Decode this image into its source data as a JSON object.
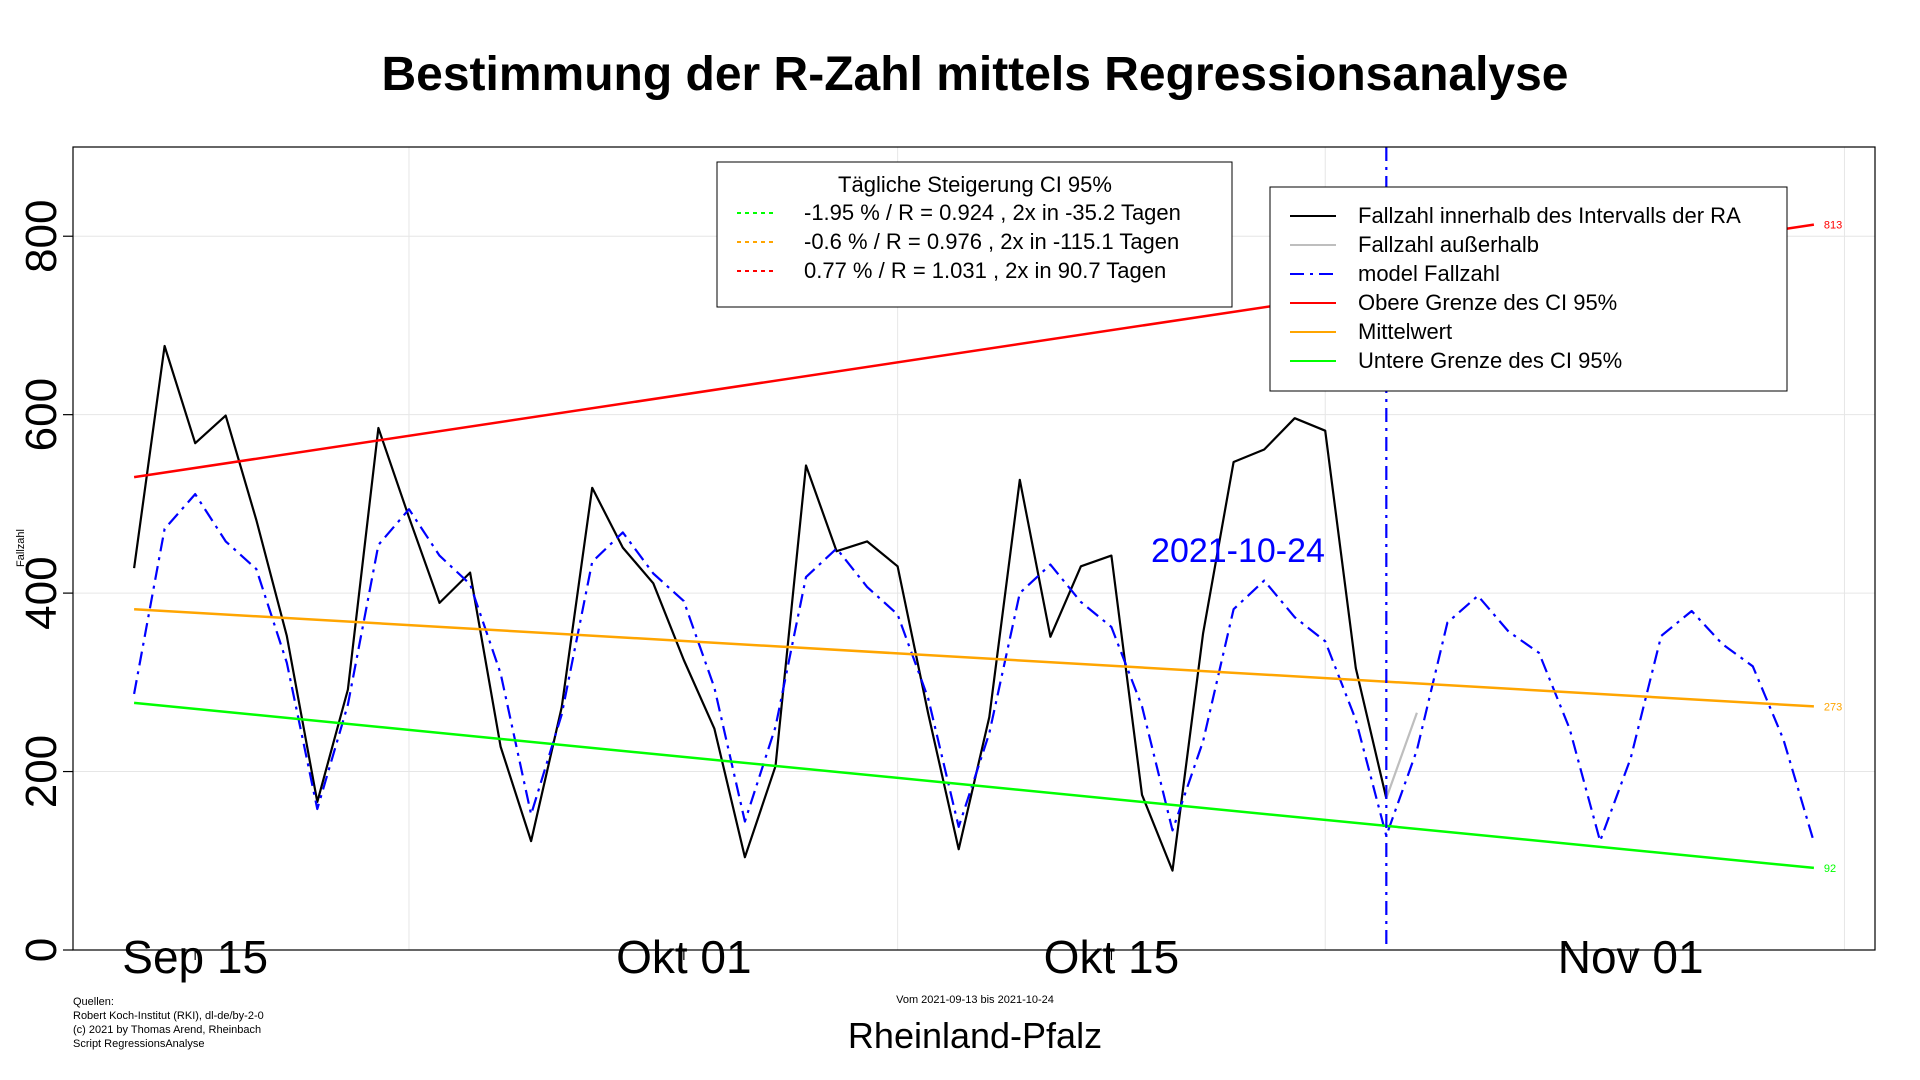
{
  "chart_data": {
    "type": "line",
    "title": "Bestimmung der R-Zahl mittels Regressionsanalyse",
    "ylabel": "Fallzahl",
    "region": "Rheinland-Pfalz",
    "period_label": "Vom 2021-09-13 bis 2021-10-24",
    "cutoff_label": "2021-10-24",
    "cutoff_date": "2021-10-24",
    "sources": [
      "Quellen:",
      "Robert Koch-Institut (RKI), dl-de/by-2-0",
      "(c) 2021 by Thomas Arend, Rheinbach",
      "Script RegressionsAnalyse"
    ],
    "ylim": [
      0,
      900
    ],
    "xlim": [
      "2021-09-11",
      "2021-11-09"
    ],
    "grid": true,
    "y_ticks": [
      {
        "label": "0",
        "value": 0
      },
      {
        "label": "200",
        "value": 200
      },
      {
        "label": "400",
        "value": 400
      },
      {
        "label": "600",
        "value": 600
      },
      {
        "label": "800",
        "value": 800
      }
    ],
    "x_ticks": [
      {
        "label": "Sep 15",
        "date": "2021-09-15"
      },
      {
        "label": "Okt 01",
        "date": "2021-10-01"
      },
      {
        "label": "Okt 15",
        "date": "2021-10-15"
      },
      {
        "label": "Nov 01",
        "date": "2021-11-01"
      }
    ],
    "x_minor_grid_dates": [
      "2021-09-22",
      "2021-10-08",
      "2021-10-22",
      "2021-11-08"
    ],
    "ci_box": {
      "title": "Tägliche Steigerung CI  95%",
      "rows": [
        {
          "text": "-1.95 % / R = 0.924 , 2x in -35.2 Tagen",
          "color": "#00ff00"
        },
        {
          "text": "-0.6 % / R = 0.976 , 2x in -115.1 Tagen",
          "color": "#ffa500"
        },
        {
          "text": "0.77 % / R = 1.031 , 2x in 90.7 Tagen",
          "color": "#ff0000"
        }
      ]
    },
    "legend": {
      "placement": "top-right",
      "items": [
        {
          "text": "Fallzahl innerhalb des Intervalls der RA",
          "color": "#000000",
          "dash": "solid"
        },
        {
          "text": "Fallzahl außerhalb",
          "color": "#bebebe",
          "dash": "solid"
        },
        {
          "text": "model Fallzahl",
          "color": "#0000ff",
          "dash": "dashdot"
        },
        {
          "text": "Obere Grenze des CI 95%",
          "color": "#ff0000",
          "dash": "solid"
        },
        {
          "text": "Mittelwert",
          "color": "#ffa500",
          "dash": "solid"
        },
        {
          "text": "Untere Grenze des CI 95%",
          "color": "#00ff00",
          "dash": "solid"
        }
      ]
    },
    "series": [
      {
        "name": "Fallzahl innerhalb des Intervalls der RA",
        "color": "#000000",
        "x": [
          "2021-09-13",
          "2021-09-14",
          "2021-09-15",
          "2021-09-16",
          "2021-09-17",
          "2021-09-18",
          "2021-09-19",
          "2021-09-20",
          "2021-09-21",
          "2021-09-22",
          "2021-09-23",
          "2021-09-24",
          "2021-09-25",
          "2021-09-26",
          "2021-09-27",
          "2021-09-28",
          "2021-09-29",
          "2021-09-30",
          "2021-10-01",
          "2021-10-02",
          "2021-10-03",
          "2021-10-04",
          "2021-10-05",
          "2021-10-06",
          "2021-10-07",
          "2021-10-08",
          "2021-10-09",
          "2021-10-10",
          "2021-10-11",
          "2021-10-12",
          "2021-10-13",
          "2021-10-14",
          "2021-10-15",
          "2021-10-16",
          "2021-10-17",
          "2021-10-18",
          "2021-10-19",
          "2021-10-20",
          "2021-10-21",
          "2021-10-22",
          "2021-10-23",
          "2021-10-24"
        ],
        "values": [
          428,
          677,
          568,
          599,
          482,
          352,
          166,
          292,
          585,
          485,
          389,
          423,
          228,
          122,
          272,
          518,
          451,
          411,
          325,
          248,
          104,
          206,
          543,
          447,
          458,
          430,
          265,
          113,
          261,
          527,
          351,
          430,
          442,
          174,
          89,
          355,
          547,
          561,
          596,
          582,
          316,
          170
        ]
      },
      {
        "name": "Fallzahl außerhalb",
        "color": "#bebebe",
        "x": [
          "2021-10-24",
          "2021-10-25"
        ],
        "values": [
          170,
          266
        ]
      },
      {
        "name": "model Fallzahl",
        "color": "#0000ff",
        "x": [
          "2021-09-13",
          "2021-09-14",
          "2021-09-15",
          "2021-09-16",
          "2021-09-17",
          "2021-09-18",
          "2021-09-19",
          "2021-09-20",
          "2021-09-21",
          "2021-09-22",
          "2021-09-23",
          "2021-09-24",
          "2021-09-25",
          "2021-09-26",
          "2021-09-27",
          "2021-09-28",
          "2021-09-29",
          "2021-09-30",
          "2021-10-01",
          "2021-10-02",
          "2021-10-03",
          "2021-10-04",
          "2021-10-05",
          "2021-10-06",
          "2021-10-07",
          "2021-10-08",
          "2021-10-09",
          "2021-10-10",
          "2021-10-11",
          "2021-10-12",
          "2021-10-13",
          "2021-10-14",
          "2021-10-15",
          "2021-10-16",
          "2021-10-17",
          "2021-10-18",
          "2021-10-19",
          "2021-10-20",
          "2021-10-21",
          "2021-10-22",
          "2021-10-23",
          "2021-10-24",
          "2021-10-25",
          "2021-10-26",
          "2021-10-27",
          "2021-10-28",
          "2021-10-29",
          "2021-10-30",
          "2021-10-31",
          "2021-11-01",
          "2021-11-02",
          "2021-11-03",
          "2021-11-04",
          "2021-11-05",
          "2021-11-06",
          "2021-11-07"
        ],
        "values": [
          287,
          472,
          511,
          458,
          427,
          322,
          158,
          275,
          454,
          494,
          442,
          410,
          310,
          152,
          264,
          435,
          468,
          422,
          391,
          294,
          144,
          250,
          418,
          450,
          407,
          376,
          282,
          138,
          243,
          400,
          432,
          390,
          362,
          273,
          134,
          234,
          382,
          414,
          373,
          346,
          258,
          128,
          224,
          367,
          397,
          357,
          333,
          248,
          122,
          215,
          352,
          380,
          343,
          318,
          236,
          121
        ]
      },
      {
        "name": "Obere Grenze des CI 95%",
        "color": "#ff0000",
        "x": [
          "2021-09-13",
          "2021-11-07"
        ],
        "start_value": 530,
        "end_value": 813,
        "end_label": "813"
      },
      {
        "name": "Mittelwert",
        "color": "#ffa500",
        "x": [
          "2021-09-13",
          "2021-11-07"
        ],
        "start_value": 382,
        "end_value": 273,
        "end_label": "273"
      },
      {
        "name": "Untere Grenze des CI 95%",
        "color": "#00ff00",
        "x": [
          "2021-09-13",
          "2021-11-07"
        ],
        "start_value": 277,
        "end_value": 92,
        "end_label": "92"
      }
    ]
  }
}
